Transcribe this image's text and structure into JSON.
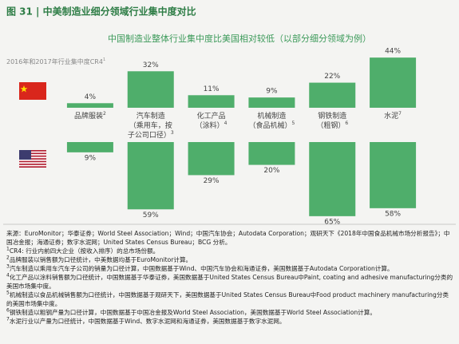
{
  "chart_data": {
    "type": "diverging_bar",
    "title": "图 31 | 中美制造业细分领域行业集中度对比",
    "subtitle": "中国制造业整体行业集中度比美国相对较低（以部分细分领域为例）",
    "axis_note": "2016年和2017年行业集中度CR4",
    "axis_note_mark": "1",
    "categories": [
      "品牌服装",
      "汽车制造\n（乘用车，按\n子公司口径）",
      "化工产品\n（涂料）",
      "机械制造\n（食品机械）",
      "钢铁制造\n（粗钢）",
      "水泥"
    ],
    "category_notes": [
      "2",
      "3",
      "4",
      "5",
      "6",
      "7"
    ],
    "ylim": [
      0,
      70
    ],
    "series": [
      {
        "color": "#4fae6b",
        "values": [
          4,
          32,
          11,
          9,
          22,
          44
        ],
        "value_labels": [
          "4%",
          "32%",
          "11%",
          "9%",
          "22%",
          "44%"
        ]
      },
      {
        "color": "#4fae6b",
        "values": [
          9,
          59,
          29,
          20,
          65,
          58
        ],
        "value_labels": [
          "9%",
          "59%",
          "29%",
          "20%",
          "65%",
          "58%"
        ]
      }
    ]
  },
  "footer": {
    "source": "来源：EuroMonitor；华泰证券；World Steel Association；Wind；中国汽车协会；Autodata Corporation；观研天下《2018年中国食品机械市场分析报告》；中国冶金报；海通证券；数字水泥网；United States Census Bureau；BCG 分析。",
    "notes": [
      {
        "mark": "1",
        "text": "CR4: 行业内前四大企业（按收入排序）的总市场份额。"
      },
      {
        "mark": "2",
        "text": "品牌服装以销售额为口径统计，中美数据均基于EuroMonitor计算。"
      },
      {
        "mark": "3",
        "text": "汽车制造以乘用车汽车子公司的销量为口径计算，中国数据基于Wind、中国汽车协会和海通证券，美国数据基于Autodata Corporation计算。"
      },
      {
        "mark": "4",
        "text": "化工产品以涂料销售额为口径统计，中国数据基于华泰证券，美国数据基于United States Census Bureau中Paint, coating and adhesive manufacturing分类的美国市场集中度。"
      },
      {
        "mark": "5",
        "text": "机械制造以食品机械销售额为口径统计，中国数据基于观研天下，美国数据基于United States Census Bureau中Food product machinery manufacturing分类的美国市场集中度。"
      },
      {
        "mark": "6",
        "text": "钢铁制造以粗钢产量为口径计算，中国数据基于中国冶金报及World Steel Association，美国数据基于World Steel Association计算。"
      },
      {
        "mark": "7",
        "text": "水泥行业以产量为口径统计，中国数据基于Wind、数字水泥网和海通证券，美国数据基于数字水泥网。"
      }
    ]
  }
}
